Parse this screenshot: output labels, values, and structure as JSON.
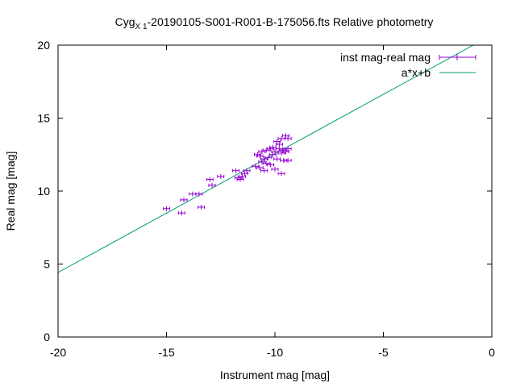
{
  "chart_data": {
    "type": "scatter",
    "title": {
      "main": "Cyg",
      "subscript": "X 1",
      "rest": "-20190105-S001-R001-B-175056.fts Relative photometry"
    },
    "xlabel": "Instrument mag [mag]",
    "ylabel": "Real mag [mag]",
    "xlim": [
      -20,
      0
    ],
    "ylim": [
      0,
      20
    ],
    "xticks": [
      -20,
      -15,
      -10,
      -5,
      0
    ],
    "yticks": [
      0,
      5,
      10,
      15,
      20
    ],
    "grid": false,
    "legend_position": "top-right",
    "series": [
      {
        "name": "inst mag-real mag",
        "kind": "points-with-x-errorbars",
        "color": "#9400d3",
        "points": [
          [
            -15.0,
            8.8
          ],
          [
            -14.3,
            8.5
          ],
          [
            -14.2,
            9.4
          ],
          [
            -13.8,
            9.8
          ],
          [
            -13.5,
            9.8
          ],
          [
            -13.4,
            8.9
          ],
          [
            -13.0,
            10.8
          ],
          [
            -12.9,
            10.4
          ],
          [
            -12.5,
            11.0
          ],
          [
            -11.8,
            11.4
          ],
          [
            -11.7,
            10.9
          ],
          [
            -11.6,
            10.8
          ],
          [
            -11.5,
            11.0
          ],
          [
            -11.4,
            11.2
          ],
          [
            -11.3,
            11.4
          ],
          [
            -10.9,
            11.7
          ],
          [
            -10.8,
            12.5
          ],
          [
            -10.7,
            11.6
          ],
          [
            -10.7,
            12.4
          ],
          [
            -10.6,
            12.0
          ],
          [
            -10.6,
            12.7
          ],
          [
            -10.5,
            11.4
          ],
          [
            -10.5,
            12.2
          ],
          [
            -10.4,
            12.8
          ],
          [
            -10.4,
            11.9
          ],
          [
            -10.3,
            12.3
          ],
          [
            -10.2,
            12.9
          ],
          [
            -10.2,
            11.8
          ],
          [
            -10.1,
            13.0
          ],
          [
            -10.1,
            12.5
          ],
          [
            -10.0,
            11.5
          ],
          [
            -10.0,
            12.7
          ],
          [
            -9.9,
            13.4
          ],
          [
            -9.9,
            12.2
          ],
          [
            -9.8,
            12.9
          ],
          [
            -9.8,
            13.2
          ],
          [
            -9.7,
            11.2
          ],
          [
            -9.7,
            12.6
          ],
          [
            -9.7,
            13.6
          ],
          [
            -9.6,
            12.8
          ],
          [
            -9.6,
            12.1
          ],
          [
            -9.5,
            13.8
          ],
          [
            -9.5,
            12.7
          ],
          [
            -9.4,
            13.6
          ],
          [
            -9.4,
            12.1
          ],
          [
            -9.4,
            12.9
          ]
        ]
      },
      {
        "name": "a*x+b",
        "kind": "line",
        "color": "#009e73",
        "slope": 0.814,
        "intercept": 20.7
      }
    ]
  }
}
